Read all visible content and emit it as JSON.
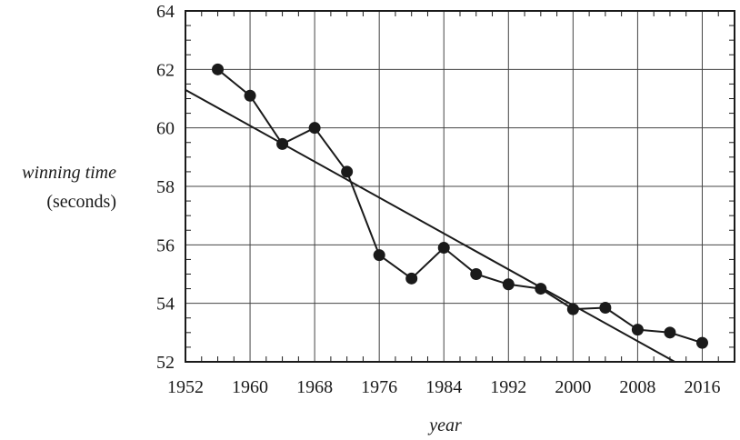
{
  "chart_data": {
    "type": "line",
    "xlabel": "year",
    "ylabel_line1": "winning time",
    "ylabel_line2": "(seconds)",
    "xlim": [
      1952,
      2020
    ],
    "ylim": [
      52,
      64
    ],
    "x_ticks": [
      1952,
      1960,
      1968,
      1976,
      1984,
      1992,
      2000,
      2008,
      2016
    ],
    "y_ticks": [
      52,
      54,
      56,
      58,
      60,
      62,
      64
    ],
    "grid": true,
    "series": [
      {
        "x": [
          1956,
          1960,
          1964,
          1968,
          1972,
          1976,
          1980,
          1984,
          1988,
          1992,
          1996,
          2000,
          2004,
          2008,
          2012,
          2016
        ],
        "y": [
          62.0,
          61.1,
          59.45,
          60.0,
          58.5,
          55.65,
          54.85,
          55.9,
          55.0,
          54.65,
          54.5,
          53.8,
          53.85,
          53.1,
          53.0,
          52.65
        ],
        "style": "line-with-markers"
      }
    ],
    "trend_line": {
      "x": [
        1952,
        2012.6
      ],
      "y": [
        61.3,
        52.0
      ]
    }
  }
}
